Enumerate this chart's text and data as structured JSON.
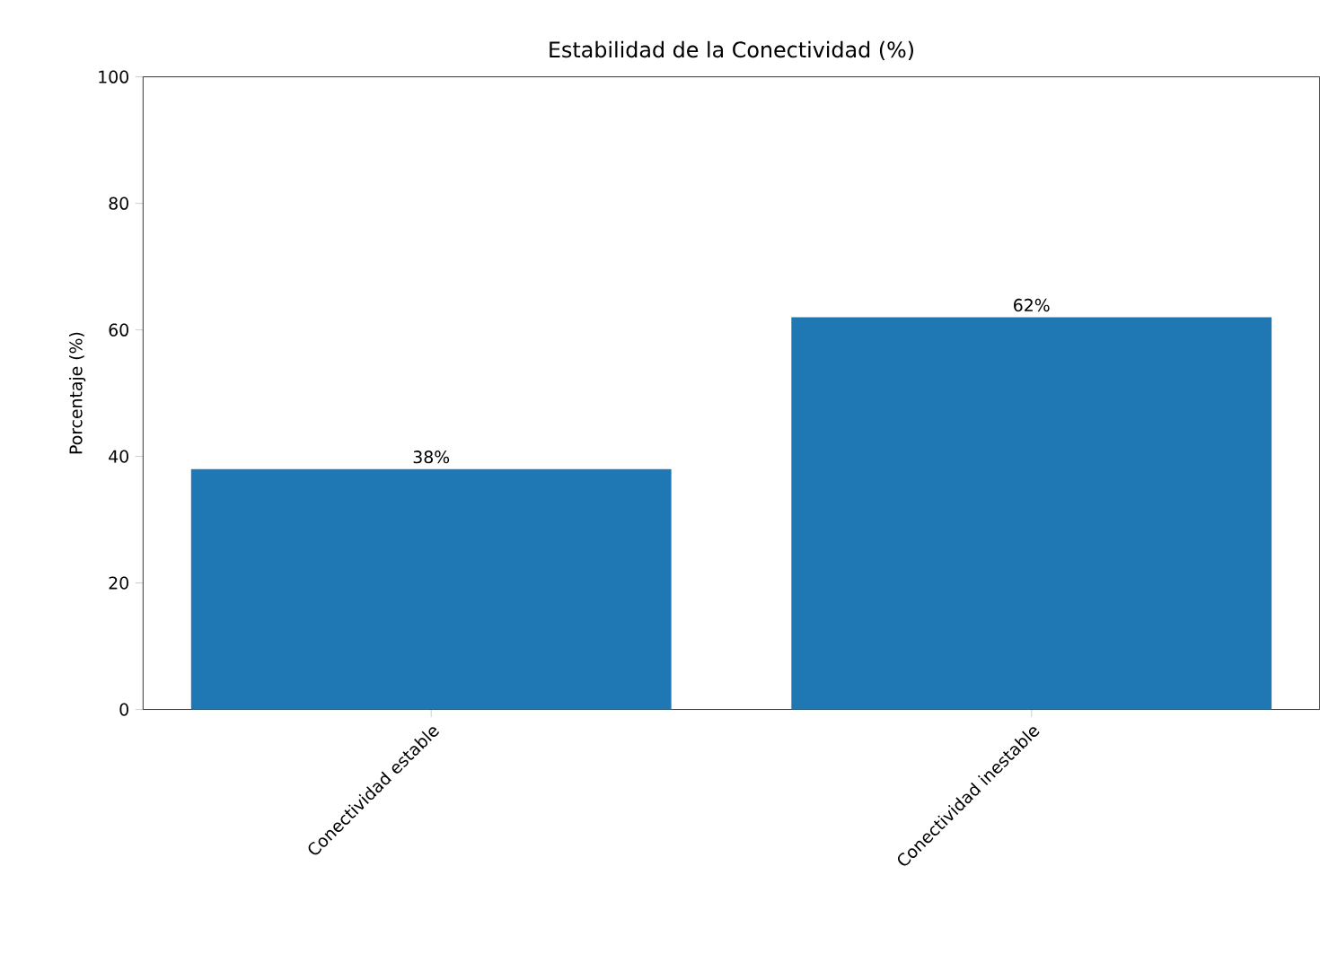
{
  "chart_data": {
    "type": "bar",
    "title": "Estabilidad de la Conectividad (%)",
    "ylabel": "Porcentaje (%)",
    "categories": [
      "Conectividad estable",
      "Conectividad inestable"
    ],
    "values": [
      38,
      62
    ],
    "value_labels": [
      "38%",
      "62%"
    ],
    "color": "#1f77b4",
    "ylim": [
      0,
      100
    ],
    "yticks": [
      0,
      20,
      40,
      60,
      80,
      100
    ],
    "grid": false
  }
}
